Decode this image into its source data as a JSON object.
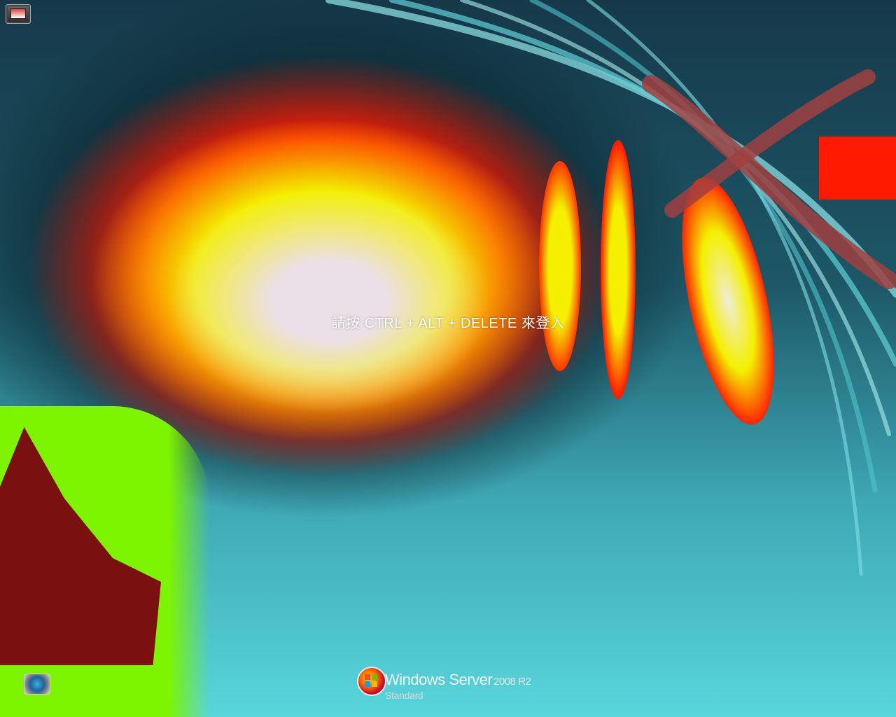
{
  "logon": {
    "message": "請按 CTRL + ALT + DELETE 來登入"
  },
  "branding": {
    "product": "Windows Server",
    "version": "2008 R2",
    "edition": "Standard"
  },
  "icons": {
    "top_left": "display-switch-icon",
    "bottom_left": "ease-of-access-icon",
    "logo": "windows-orb-icon"
  },
  "colors": {
    "background": "#0f3340",
    "text": "#ffffff"
  }
}
